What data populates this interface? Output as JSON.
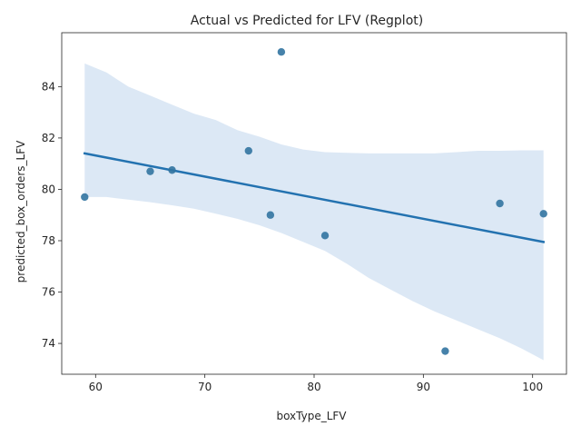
{
  "chart_data": {
    "type": "scatter",
    "title": "Actual vs Predicted for LFV (Regplot)",
    "xlabel": "boxType_LFV",
    "ylabel": "predicted_box_orders_LFV",
    "xlim": [
      56.9,
      103.1
    ],
    "ylim": [
      72.8,
      86.1
    ],
    "xticks": [
      60,
      70,
      80,
      90,
      100
    ],
    "yticks": [
      74,
      76,
      78,
      80,
      82,
      84
    ],
    "grid": false,
    "points": [
      {
        "x": 59,
        "y": 79.7
      },
      {
        "x": 65,
        "y": 80.7
      },
      {
        "x": 67,
        "y": 80.75
      },
      {
        "x": 74,
        "y": 81.5
      },
      {
        "x": 76,
        "y": 79.0
      },
      {
        "x": 77,
        "y": 85.35
      },
      {
        "x": 81,
        "y": 78.2
      },
      {
        "x": 92,
        "y": 73.7
      },
      {
        "x": 97,
        "y": 79.45
      },
      {
        "x": 101,
        "y": 79.05
      }
    ],
    "regression": {
      "x": [
        59,
        101
      ],
      "y": [
        81.4,
        77.95
      ]
    },
    "confidence_band": {
      "x": [
        59,
        61,
        63,
        65,
        67,
        69,
        71,
        73,
        75,
        77,
        79,
        81,
        83,
        85,
        87,
        89,
        91,
        93,
        95,
        97,
        99,
        101
      ],
      "upper": [
        84.9,
        84.55,
        84.0,
        83.65,
        83.3,
        82.95,
        82.7,
        82.3,
        82.05,
        81.75,
        81.55,
        81.45,
        81.42,
        81.4,
        81.4,
        81.4,
        81.4,
        81.45,
        81.5,
        81.5,
        81.52,
        81.52
      ],
      "lower": [
        79.7,
        79.7,
        79.6,
        79.5,
        79.38,
        79.25,
        79.05,
        78.85,
        78.6,
        78.3,
        77.95,
        77.6,
        77.1,
        76.55,
        76.1,
        75.65,
        75.25,
        74.9,
        74.55,
        74.2,
        73.8,
        73.35
      ]
    },
    "colors": {
      "points": "#3274a1",
      "line": "#2372b0",
      "band": "#c5d9ee",
      "axis": "#262626"
    }
  }
}
